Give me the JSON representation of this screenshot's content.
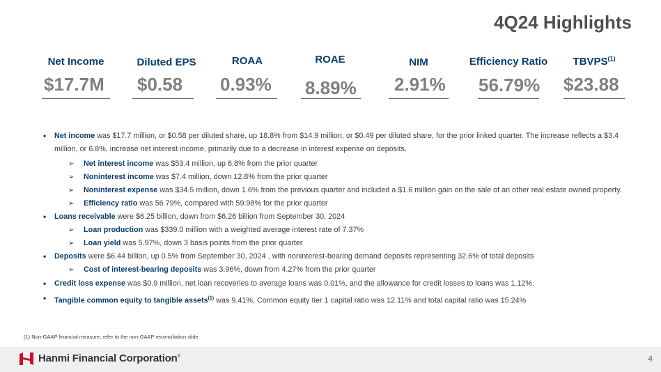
{
  "title": "4Q24 Highlights",
  "kpis": [
    {
      "label": "Net Income",
      "sup": "",
      "value": "$17.7M"
    },
    {
      "label": "Diluted EPS",
      "sup": "",
      "value": "$0.58"
    },
    {
      "label": "ROAA",
      "sup": "",
      "value": "0.93%"
    },
    {
      "label": "ROAE",
      "sup": "",
      "value": "8.89%"
    },
    {
      "label": "NIM",
      "sup": "",
      "value": "2.91%"
    },
    {
      "label": "Efficiency Ratio",
      "sup": "",
      "value": "56.79%"
    },
    {
      "label": "TBVPS",
      "sup": "(1)",
      "value": "$23.88"
    }
  ],
  "bullets": {
    "b1": {
      "bold": "Net income",
      "text": " was $17.7 million, or $0.58 per diluted share, up 18.8% from $14.9 million, or $0.49 per diluted share, for the prior linked quarter. The increase reflects a $3.4 million, or 6.8%, increase net interest income, primarily due to a decrease in interest expense on deposits."
    },
    "b1_1": {
      "bold": "Net interest income",
      "text": " was $53.4 million, up 6.8% from the prior quarter"
    },
    "b1_2": {
      "bold": "Noninterest income",
      "text": " was $7.4 million, down 12.8% from the prior quarter"
    },
    "b1_3": {
      "bold": "Noninterest expense",
      "text": " was $34.5 million, down 1.6% from the previous quarter and included a $1.6 million gain on the sale of an other real estate owned property."
    },
    "b1_4": {
      "bold": "Efficiency ratio",
      "text": " was 56.79%, compared with 59.98% for the prior quarter"
    },
    "b2": {
      "bold": "Loans receivable",
      "text": " were $6.25 billion, down from $6.26 billion from September 30, 2024"
    },
    "b2_1": {
      "bold": "Loan production",
      "text": " was $339.0 million with a weighted average interest rate of 7.37%"
    },
    "b2_2": {
      "bold": "Loan yield",
      "text": " was 5.97%, down 3 basis points from the prior quarter"
    },
    "b3": {
      "bold": "Deposits",
      "text": " were $6.44 billion, up 0.5% from September 30, 2024 , with noninterest-bearing demand deposits representing 32.6% of total deposits"
    },
    "b3_1": {
      "bold": "Cost of interest-bearing deposits",
      "text": " was 3.96%, down from 4.27% from the prior quarter"
    },
    "b4": {
      "bold": "Credit loss expense",
      "text": " was $0.9 million, net loan recoveries to average loans was 0.01%, and the allowance for credit losses to loans was 1.12%."
    },
    "b5": {
      "bold": "Tangible common equity to tangible assets",
      "sup": "(1)",
      "text": " was 9.41%, Common equity tier 1 capital ratio was 12.11% and total capital ratio was 15.24%"
    }
  },
  "footnote": "(1)    Non-GAAP financial measure; refer to the non-GAAP reconciliation slide",
  "footer": {
    "company": "Hanmi Financial Corporation",
    "trademark": "®",
    "page": "4",
    "brand_color": "#c8102e"
  }
}
